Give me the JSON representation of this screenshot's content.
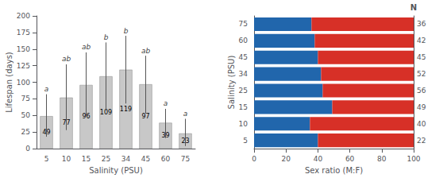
{
  "chart_data": [
    {
      "type": "bar",
      "categories": [
        "5",
        "10",
        "15",
        "25",
        "34",
        "45",
        "60",
        "75"
      ],
      "values": [
        49,
        77,
        96,
        109,
        119,
        97,
        39,
        23
      ],
      "color": "#c8c8c8",
      "error_lower": [
        18,
        28,
        50,
        58,
        68,
        53,
        16,
        4
      ],
      "error_upper": [
        82,
        127,
        145,
        160,
        170,
        140,
        60,
        45
      ],
      "annotations": [
        "a",
        "ab",
        "ab",
        "b",
        "b",
        "ab",
        "a",
        "a"
      ],
      "data_labels": true,
      "xlabel": "Salinity (PSU)",
      "ylabel": "Lifespan (days)",
      "ylim": [
        0,
        200
      ],
      "yticks": [
        0,
        25,
        50,
        75,
        100,
        125,
        150,
        175,
        200
      ],
      "grid": false
    },
    {
      "type": "bar",
      "orientation": "horizontal",
      "stacked": true,
      "categories": [
        "5",
        "10",
        "15",
        "25",
        "34",
        "45",
        "60",
        "75"
      ],
      "series": [
        {
          "color": "#2166ac",
          "values": [
            40,
            35,
            49,
            43,
            42,
            40,
            38,
            36
          ]
        },
        {
          "color": "#d73027",
          "values": [
            60,
            65,
            51,
            57,
            58,
            60,
            62,
            64
          ]
        }
      ],
      "xlabel": "Sex ratio (M:F)",
      "ylabel": "Salinity (PSU)",
      "xlim": [
        0,
        100
      ],
      "xticks": [
        0,
        20,
        40,
        60,
        80,
        100
      ],
      "N": [
        22,
        40,
        49,
        56,
        52,
        45,
        42,
        36
      ],
      "N_title": "N",
      "grid": false
    }
  ]
}
